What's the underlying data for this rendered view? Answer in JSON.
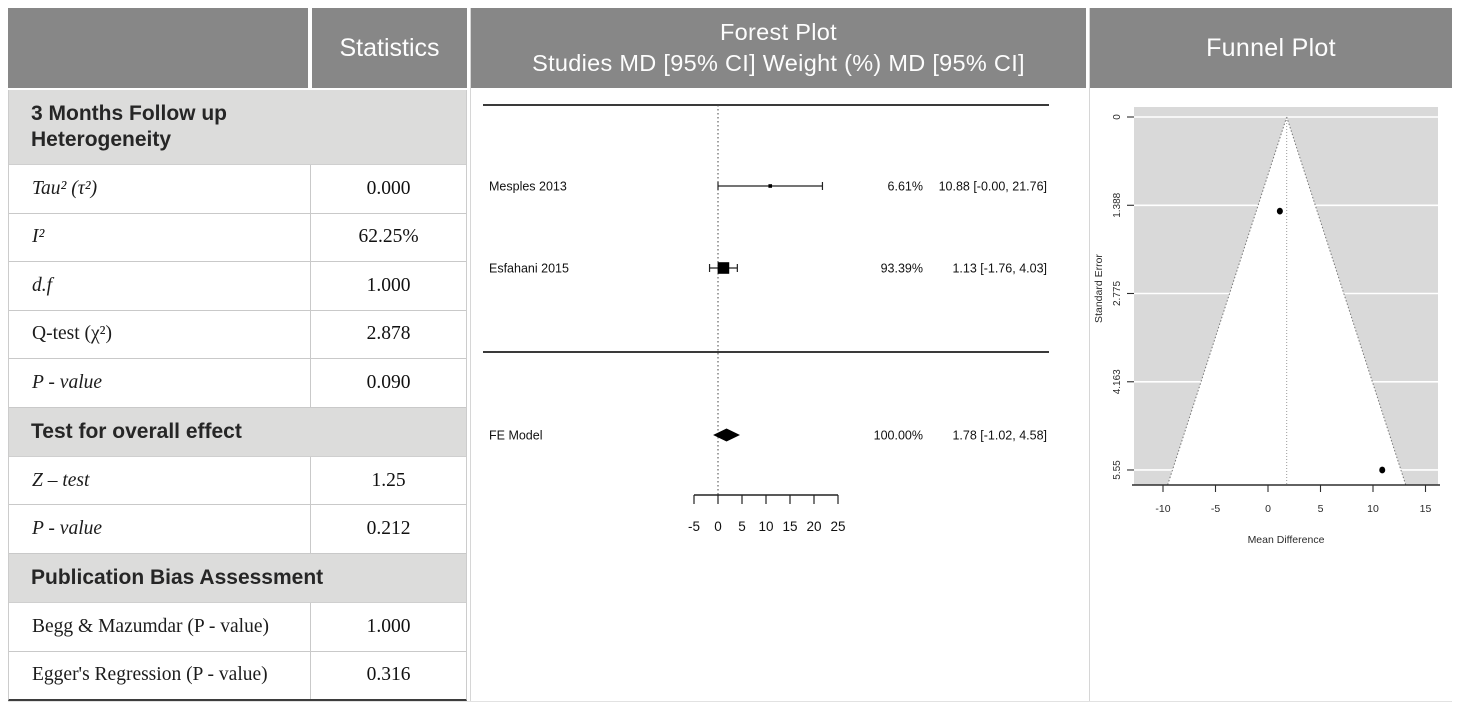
{
  "colors": {
    "header_bg": "#878787",
    "header_text": "#ffffff",
    "section_bg": "#dcdcdb",
    "row_border": "#c9c9c9",
    "table_bottom_border": "#3d3d3d",
    "plot_area_bg": "#d9d9d9",
    "gridline": "#ffffff",
    "marker": "#000000"
  },
  "header": {
    "statistics": "Statistics",
    "forest_title": "Forest Plot",
    "forest_subtitle": "Studies MD [95% CI] Weight (%) MD [95% CI]",
    "funnel_title": "Funnel Plot"
  },
  "stats_table": {
    "sections": [
      {
        "title": "3 Months Follow up Heterogeneity",
        "rows": [
          {
            "label": "Tau² (τ²)",
            "value": "0.000",
            "italic": true
          },
          {
            "label": "I²",
            "value": "62.25%",
            "italic": true
          },
          {
            "label": "d.f",
            "value": "1.000",
            "italic": true
          },
          {
            "label": "Q-test (χ²)",
            "value": "2.878",
            "italic": false
          },
          {
            "label": "P - value",
            "value": "0.090",
            "italic": true
          }
        ]
      },
      {
        "title": "Test for overall effect",
        "rows": [
          {
            "label": "Z – test",
            "value": "1.25",
            "italic": true
          },
          {
            "label": "P - value",
            "value": "0.212",
            "italic": true
          }
        ]
      },
      {
        "title": "Publication Bias Assessment",
        "rows": [
          {
            "label": "Begg & Mazumdar (P - value)",
            "value": "1.000",
            "italic": false
          },
          {
            "label": "Egger's Regression (P - value)",
            "value": "0.316",
            "italic": false
          }
        ]
      }
    ]
  },
  "chart_data": [
    {
      "type": "forest",
      "title": "Forest Plot",
      "columns_header": "Studies MD [95% CI] Weight (%) MD [95% CI]",
      "x_axis": {
        "ticks": [
          -5,
          0,
          5,
          10,
          15,
          20,
          25
        ],
        "zero_line": 0
      },
      "studies": [
        {
          "label": "Mesples 2013",
          "md": 10.88,
          "ci_low": 0.0,
          "ci_high": 21.76,
          "weight_pct": 6.61,
          "weight_label": "6.61%",
          "estimate_label": "10.88 [-0.00, 21.76]"
        },
        {
          "label": "Esfahani 2015",
          "md": 1.13,
          "ci_low": -1.76,
          "ci_high": 4.03,
          "weight_pct": 93.39,
          "weight_label": "93.39%",
          "estimate_label": "1.13 [-1.76, 4.03]"
        }
      ],
      "summary": {
        "label": "FE Model",
        "md": 1.78,
        "ci_low": -1.02,
        "ci_high": 4.58,
        "weight_pct": 100.0,
        "weight_label": "100.00%",
        "estimate_label": "1.78 [-1.02, 4.58]"
      }
    },
    {
      "type": "funnel",
      "title": "Funnel Plot",
      "xlabel": "Mean Difference",
      "ylabel": "Standard Error",
      "x_ticks": [
        -10,
        -5,
        0,
        5,
        10,
        15
      ],
      "y_ticks": [
        0,
        1.388,
        2.775,
        4.163,
        5.55
      ],
      "center": 1.78,
      "ci_multiplier": 1.96,
      "points": [
        {
          "label": "Mesples 2013",
          "x": 10.88,
          "se": 5.55
        },
        {
          "label": "Esfahani 2015",
          "x": 1.13,
          "se": 1.48
        }
      ]
    }
  ]
}
